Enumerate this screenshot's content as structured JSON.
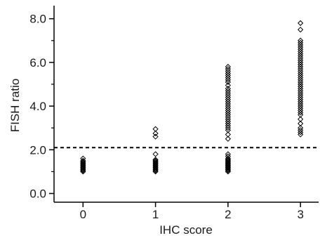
{
  "chart_data": {
    "type": "scatter",
    "xlabel": "IHC score",
    "ylabel": "FISH ratio",
    "xlim": [
      -0.4,
      3.25
    ],
    "ylim": [
      -0.4,
      8.6
    ],
    "x_ticks": [
      0,
      1,
      2,
      3
    ],
    "x_tick_labels": [
      "0",
      "1",
      "2",
      "3"
    ],
    "y_ticks": [
      0,
      2,
      4,
      6,
      8
    ],
    "y_tick_labels": [
      "0.0",
      "2.0",
      "4.0",
      "6.0",
      "8.0"
    ],
    "y_minor_ticks": [
      1,
      3,
      5,
      7
    ],
    "grid": false,
    "reference_line": {
      "y": 2.1,
      "style": "dashed"
    },
    "marker": "open-diamond",
    "series": [
      {
        "x": 0,
        "values": [
          1.0,
          1.05,
          1.1,
          1.15,
          1.2,
          1.25,
          1.3,
          1.35,
          1.4,
          1.45,
          1.5,
          1.6
        ]
      },
      {
        "x": 1,
        "values": [
          1.0,
          1.05,
          1.1,
          1.15,
          1.2,
          1.25,
          1.3,
          1.35,
          1.4,
          1.45,
          1.5,
          1.55,
          1.8,
          2.6,
          2.75,
          2.95
        ]
      },
      {
        "x": 2,
        "values": [
          1.0,
          1.05,
          1.1,
          1.15,
          1.2,
          1.25,
          1.3,
          1.35,
          1.4,
          1.45,
          1.5,
          1.55,
          1.6,
          1.7,
          1.8,
          2.5,
          2.7,
          2.9,
          3.0,
          3.1,
          3.2,
          3.3,
          3.4,
          3.5,
          3.6,
          3.7,
          3.8,
          3.9,
          4.0,
          4.1,
          4.2,
          4.3,
          4.4,
          4.5,
          4.6,
          4.7,
          4.8,
          4.95,
          5.1,
          5.2,
          5.3,
          5.4,
          5.5,
          5.6,
          5.7,
          5.8
        ]
      },
      {
        "x": 3,
        "values": [
          2.7,
          2.8,
          2.9,
          3.0,
          3.2,
          3.4,
          3.6,
          3.7,
          3.8,
          3.9,
          4.0,
          4.1,
          4.2,
          4.3,
          4.4,
          4.5,
          4.6,
          4.7,
          4.8,
          4.9,
          5.0,
          5.1,
          5.2,
          5.3,
          5.4,
          5.5,
          5.6,
          5.7,
          5.8,
          5.9,
          6.0,
          6.1,
          6.2,
          6.3,
          6.4,
          6.5,
          6.6,
          6.7,
          6.8,
          6.9,
          7.0,
          7.5,
          7.8
        ]
      }
    ]
  }
}
